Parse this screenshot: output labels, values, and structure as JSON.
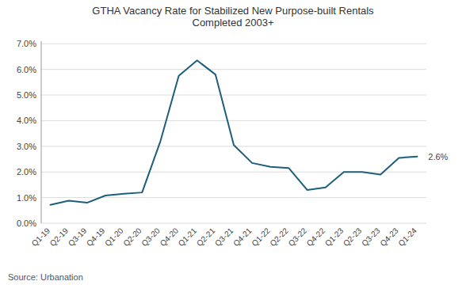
{
  "chart_data": {
    "type": "line",
    "title": "GTHA Vacancy Rate for Stabilized New Purpose-built Rentals\nCompleted 2003+",
    "source": "Source: Urbanation",
    "color": "#1c5f7a",
    "categories": [
      "Q1-19",
      "Q2-19",
      "Q3-19",
      "Q4-19",
      "Q1-20",
      "Q2-20",
      "Q3-20",
      "Q4-20",
      "Q1-21",
      "Q2-21",
      "Q3-21",
      "Q4-21",
      "Q1-22",
      "Q2-22",
      "Q3-22",
      "Q4-22",
      "Q1-23",
      "Q2-23",
      "Q3-23",
      "Q4-23",
      "Q1-24"
    ],
    "values": [
      0.0072,
      0.0088,
      0.008,
      0.0108,
      0.0115,
      0.012,
      0.032,
      0.0575,
      0.0635,
      0.058,
      0.0305,
      0.0235,
      0.022,
      0.0215,
      0.013,
      0.014,
      0.02,
      0.02,
      0.019,
      0.0255,
      0.026
    ],
    "ylim": [
      0.0,
      0.071
    ],
    "yticks": [
      {
        "value": 0.0,
        "label": "0.0%"
      },
      {
        "value": 0.01,
        "label": "1.0%"
      },
      {
        "value": 0.02,
        "label": "2.0%"
      },
      {
        "value": 0.03,
        "label": "3.0%"
      },
      {
        "value": 0.04,
        "label": "4.0%"
      },
      {
        "value": 0.05,
        "label": "5.0%"
      },
      {
        "value": 0.06,
        "label": "6.0%"
      },
      {
        "value": 0.07,
        "label": "7.0%"
      }
    ],
    "grid": true,
    "annotations": [
      {
        "text": "2.6%",
        "x": "Q1-24",
        "y": 0.026
      }
    ]
  }
}
